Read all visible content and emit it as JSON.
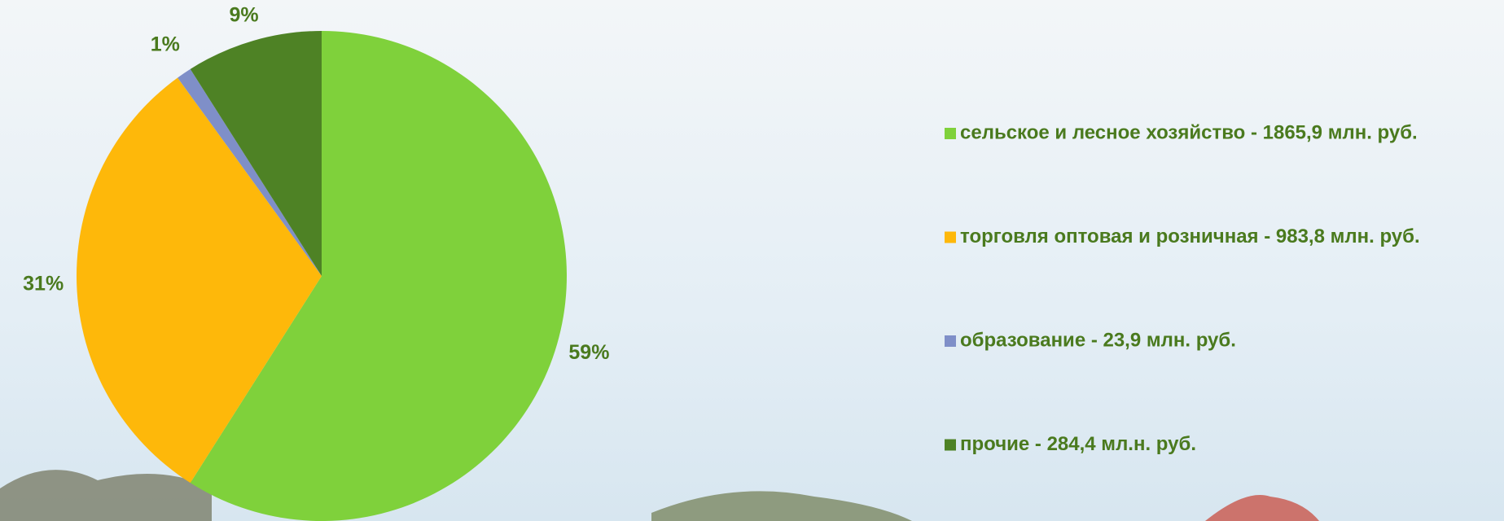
{
  "chart_data": {
    "type": "pie",
    "categories": [
      "сельское и лесное хозяйство - 1865,9 млн. руб.",
      "торговля оптовая и розничная - 983,8 млн. руб.",
      "образование - 23,9 млн. руб.",
      "прочие - 284,4 мл.н. руб."
    ],
    "values": [
      59,
      31,
      1,
      9
    ],
    "value_labels": [
      "59%",
      "31%",
      "1%",
      "9%"
    ],
    "colors": [
      "#7fd13b",
      "#feb80a",
      "#7f8fc8",
      "#4e8225"
    ],
    "legend": "right"
  }
}
